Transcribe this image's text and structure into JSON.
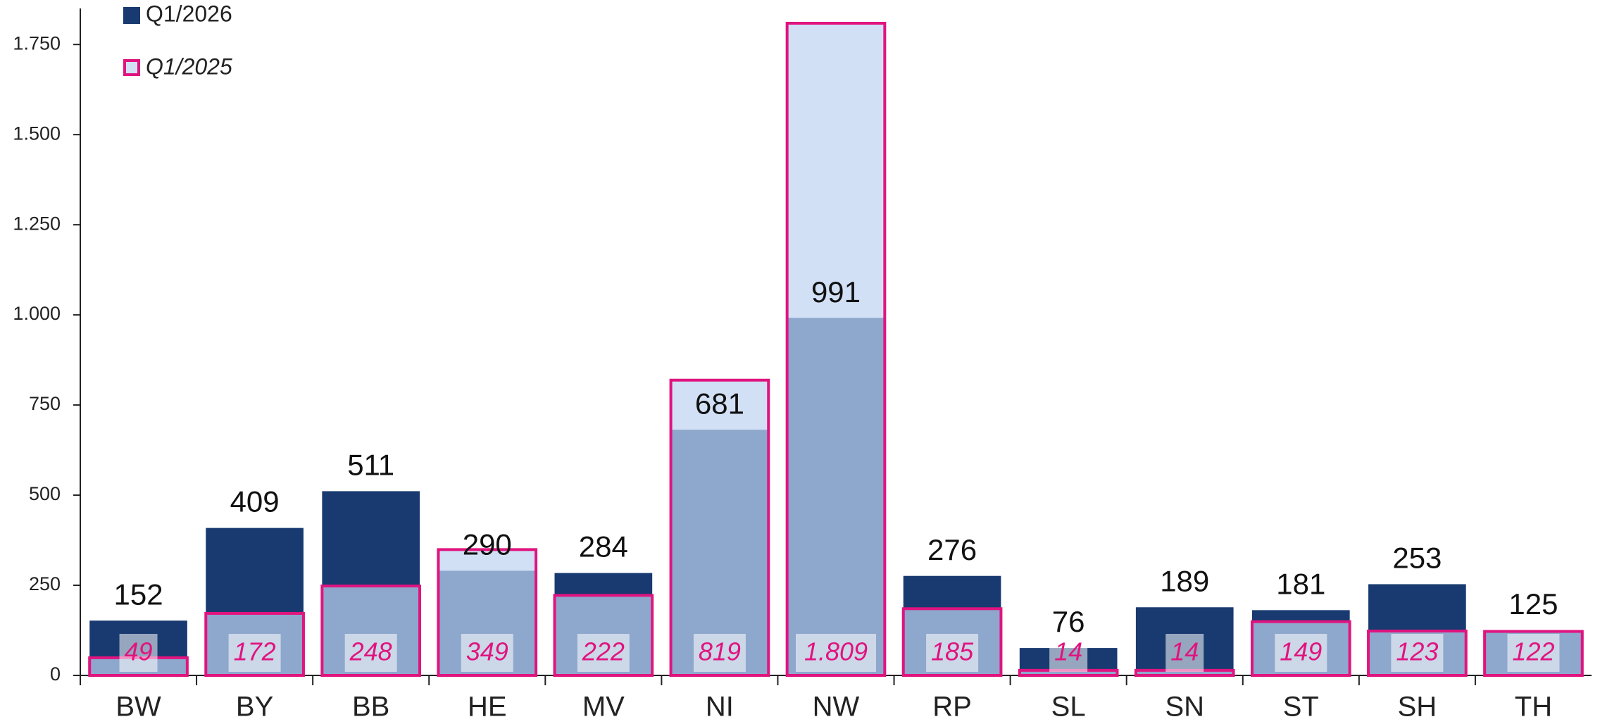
{
  "chart_data": {
    "type": "bar",
    "categories": [
      "BW",
      "BY",
      "BB",
      "HE",
      "MV",
      "NI",
      "NW",
      "RP",
      "SL",
      "SN",
      "ST",
      "SH",
      "TH"
    ],
    "series": [
      {
        "name": "Q1/2026",
        "color": "#183a70",
        "values": [
          152,
          409,
          511,
          290,
          284,
          681,
          991,
          276,
          76,
          189,
          181,
          253,
          125
        ]
      },
      {
        "name": "Q1/2025",
        "color": "#e0147f",
        "values": [
          49,
          172,
          248,
          349,
          222,
          819,
          1809,
          185,
          14,
          14,
          149,
          123,
          122
        ],
        "value_labels": [
          "49",
          "172",
          "248",
          "349",
          "222",
          "819",
          "1.809",
          "185",
          "14",
          "14",
          "149",
          "123",
          "122"
        ]
      }
    ],
    "ylim": [
      0,
      1850
    ],
    "yticks": [
      0,
      250,
      500,
      750,
      {
        "value": 1000,
        "label": "1.000"
      },
      {
        "value": 1250,
        "label": "1.250"
      },
      {
        "value": 1500,
        "label": "1.500"
      },
      {
        "value": 1750,
        "label": "1.750"
      }
    ]
  }
}
